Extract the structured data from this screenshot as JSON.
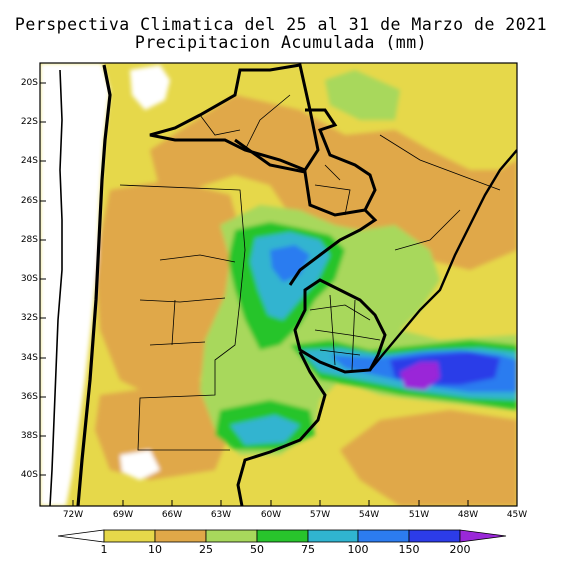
{
  "title": {
    "line1": "Perspectiva Climatica del 25 al 31 de Marzo de 2021",
    "line2": "Precipitacion Acumulada (mm)"
  },
  "map": {
    "lon_range": [
      -74,
      -45
    ],
    "lat_range": [
      -41,
      -19
    ],
    "lat_labels": [
      "20S",
      "22S",
      "24S",
      "26S",
      "28S",
      "30S",
      "32S",
      "34S",
      "36S",
      "38S",
      "40S"
    ],
    "lon_labels": [
      "72W",
      "69W",
      "66W",
      "63W",
      "60W",
      "57W",
      "54W",
      "51W",
      "48W",
      "45W"
    ]
  },
  "colorbar": {
    "labels": [
      "1",
      "10",
      "25",
      "50",
      "75",
      "100",
      "150",
      "200"
    ],
    "colors": [
      "#ffffff",
      "#e6d84a",
      "#e0a848",
      "#a8d85c",
      "#28c42c",
      "#30b4d0",
      "#2c7cf0",
      "#2c3ce8",
      "#9a28d8"
    ]
  }
}
